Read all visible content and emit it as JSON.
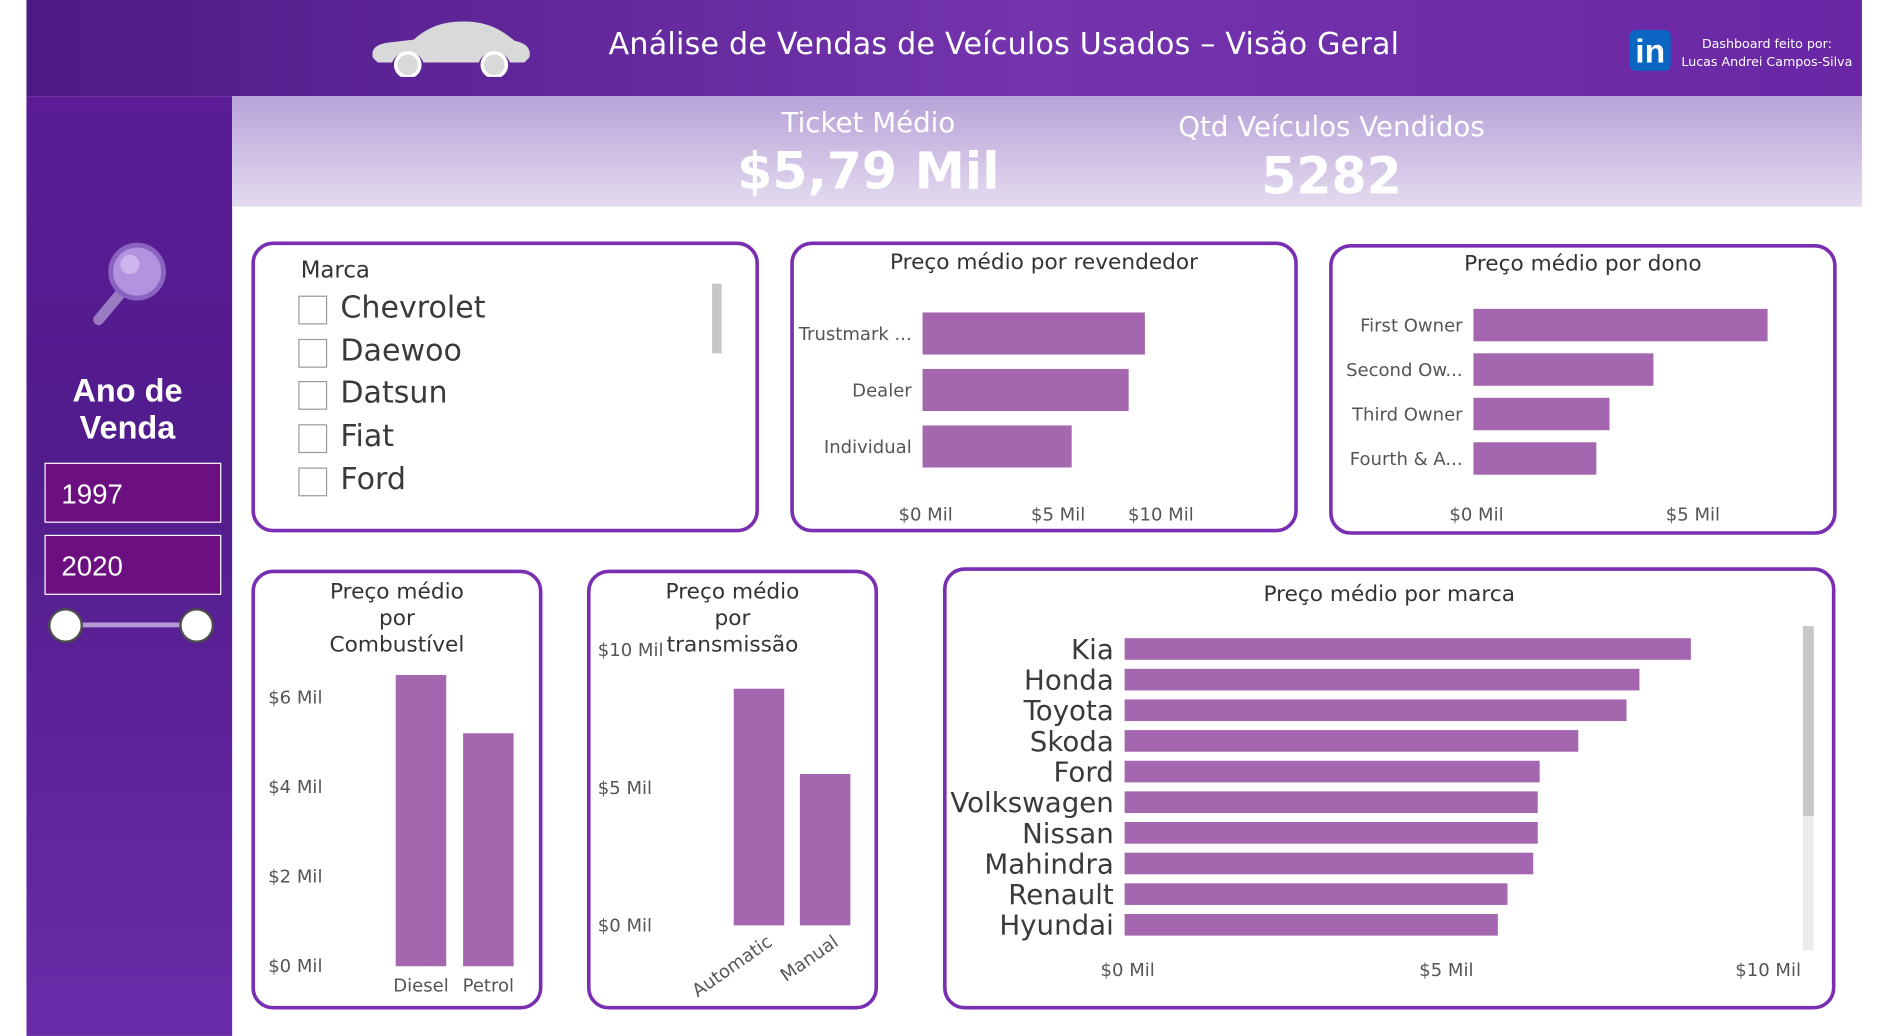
{
  "header": {
    "title": "Análise de Vendas de Veículos Usados – Visão Geral",
    "credit_line1": "Dashboard feito por:",
    "credit_line2": "Lucas Andrei Campos-Silva",
    "linkedin_icon_text": "in",
    "car_icon": "car-icon"
  },
  "kpis": {
    "ticket_label": "Ticket Médio",
    "ticket_value": "$5,79 Mil",
    "qty_label": "Qtd Veículos Vendidos",
    "qty_value": "5282"
  },
  "filter": {
    "icon": "magnifier-icon",
    "title_line1": "Ano de",
    "title_line2": "Venda",
    "start_year": "1997",
    "end_year": "2020"
  },
  "brand_slicer": {
    "header": "Marca",
    "items": [
      "Chevrolet",
      "Daewoo",
      "Datsun",
      "Fiat",
      "Ford"
    ]
  },
  "colors": {
    "bar": "#a566b0",
    "accent": "#7a2eb2",
    "header_bg": "#5b1c96",
    "year_box": "#6c0f80"
  },
  "chart_data": [
    {
      "id": "seller",
      "type": "bar",
      "orientation": "horizontal",
      "title": "Preço médio por revendedor",
      "categories": [
        "Trustmark ...",
        "Dealer",
        "Individual"
      ],
      "values": [
        8.2,
        7.6,
        5.5
      ],
      "xlim": [
        0,
        11
      ],
      "ticks": [
        0,
        5,
        10
      ],
      "tick_labels": [
        "$0 Mil",
        "$5 Mil",
        "$10 Mil"
      ]
    },
    {
      "id": "owner",
      "type": "bar",
      "orientation": "horizontal",
      "title": "Preço médio por dono",
      "categories": [
        "First Owner",
        "Second Ow...",
        "Third Owner",
        "Fourth & A..."
      ],
      "values": [
        6.7,
        4.1,
        3.1,
        2.8
      ],
      "xlim": [
        0,
        8
      ],
      "ticks": [
        0,
        5
      ],
      "tick_labels": [
        "$0 Mil",
        "$5 Mil"
      ]
    },
    {
      "id": "fuel",
      "type": "bar",
      "orientation": "vertical",
      "title": "Preço médio por Combustível",
      "categories": [
        "Diesel",
        "Petrol"
      ],
      "values": [
        6.5,
        5.2
      ],
      "ylim": [
        0,
        7
      ],
      "ticks": [
        0,
        2,
        4,
        6
      ],
      "tick_labels": [
        "$0 Mil",
        "$2 Mil",
        "$4 Mil",
        "$6 Mil"
      ]
    },
    {
      "id": "transmission",
      "type": "bar",
      "orientation": "vertical",
      "title": "Preço médio por transmissão",
      "categories": [
        "Automatic",
        "Manual"
      ],
      "values": [
        8.6,
        5.5
      ],
      "ylim": [
        0,
        10
      ],
      "ticks": [
        0,
        5,
        10
      ],
      "tick_labels": [
        "$0 Mil",
        "$5 Mil",
        "$10 Mil"
      ]
    },
    {
      "id": "brand",
      "type": "bar",
      "orientation": "horizontal",
      "title": "Preço médio por marca",
      "categories": [
        "Kia",
        "Honda",
        "Toyota",
        "Skoda",
        "Ford",
        "Volkswagen",
        "Nissan",
        "Mahindra",
        "Renault",
        "Hyundai"
      ],
      "values": [
        8.8,
        8.0,
        7.8,
        7.05,
        6.45,
        6.42,
        6.42,
        6.35,
        5.95,
        5.8
      ],
      "xlim": [
        0,
        10
      ],
      "ticks": [
        0,
        5,
        10
      ],
      "tick_labels": [
        "$0 Mil",
        "$5 Mil",
        "$10 Mil"
      ]
    }
  ]
}
